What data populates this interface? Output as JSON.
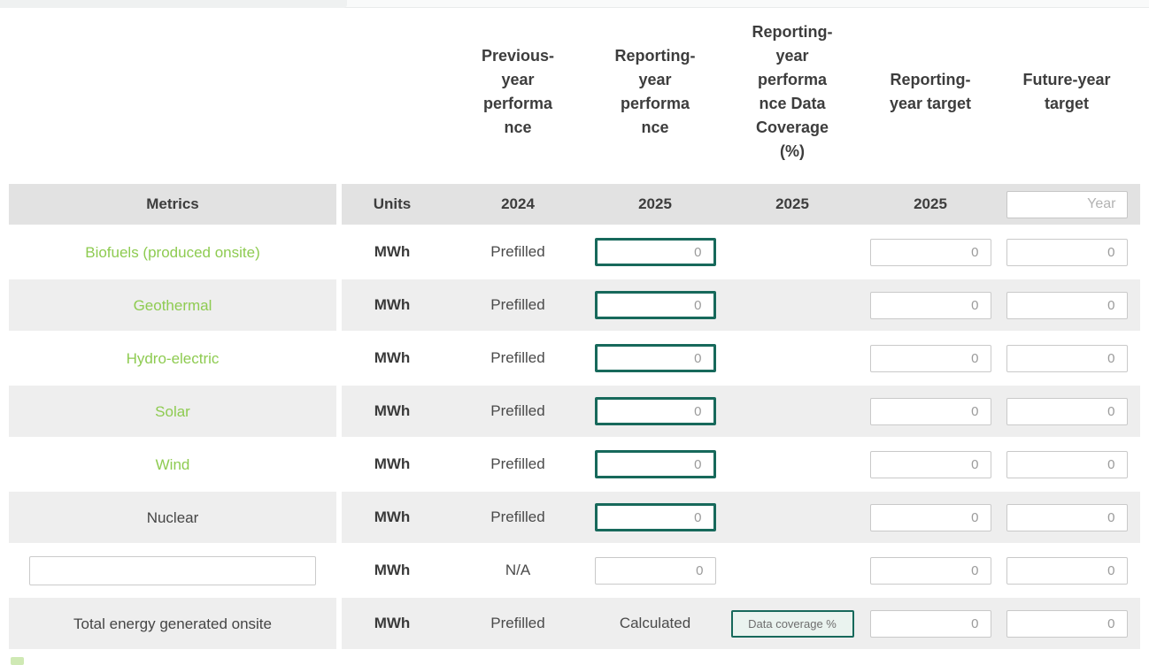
{
  "colors": {
    "accent_teal": "#17695b",
    "metric_green": "#8ecb51",
    "header_row_grey": "#e2e2e2",
    "row_grey": "#eeeeee"
  },
  "header_groups": {
    "previous_year": "Previous-\nyear\nperforma\nnce",
    "reporting_year": "Reporting-\nyear\nperforma\nnce",
    "coverage": "Reporting-\nyear\nperforma\nnce Data\nCoverage\n(%)",
    "reporting_target": "Reporting-\nyear target",
    "future_target": "Future-year\ntarget"
  },
  "header_row": {
    "metrics": "Metrics",
    "units": "Units",
    "previous_year": "2024",
    "reporting_year": "2025",
    "coverage_year": "2025",
    "target_year": "2025",
    "future_year_placeholder": "Year"
  },
  "rows": [
    {
      "metric": "Biofuels (produced onsite)",
      "units": "MWh",
      "previous": "Prefilled",
      "performance_placeholder": "0",
      "target_placeholder": "0",
      "future_placeholder": "0"
    },
    {
      "metric": "Geothermal",
      "units": "MWh",
      "previous": "Prefilled",
      "performance_placeholder": "0",
      "target_placeholder": "0",
      "future_placeholder": "0"
    },
    {
      "metric": "Hydro-electric",
      "units": "MWh",
      "previous": "Prefilled",
      "performance_placeholder": "0",
      "target_placeholder": "0",
      "future_placeholder": "0"
    },
    {
      "metric": "Solar",
      "units": "MWh",
      "previous": "Prefilled",
      "performance_placeholder": "0",
      "target_placeholder": "0",
      "future_placeholder": "0"
    },
    {
      "metric": "Wind",
      "units": "MWh",
      "previous": "Prefilled",
      "performance_placeholder": "0",
      "target_placeholder": "0",
      "future_placeholder": "0"
    },
    {
      "metric": "Nuclear",
      "units": "MWh",
      "previous": "Prefilled",
      "performance_placeholder": "0",
      "target_placeholder": "0",
      "future_placeholder": "0"
    },
    {
      "metric_value": "",
      "units": "MWh",
      "previous": "N/A",
      "performance_placeholder": "0",
      "target_placeholder": "0",
      "future_placeholder": "0"
    },
    {
      "metric": "Total energy generated onsite",
      "units": "MWh",
      "previous": "Prefilled",
      "performance": "Calculated",
      "coverage_button": "Data coverage %",
      "target_placeholder": "0",
      "future_placeholder": "0"
    }
  ]
}
